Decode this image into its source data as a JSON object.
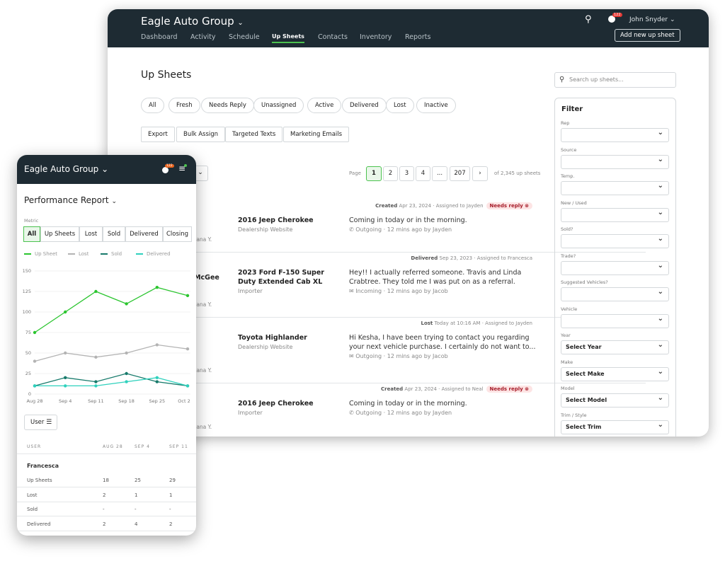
{
  "desktop": {
    "brand": "Eagle Auto Group",
    "nav": [
      "Dashboard",
      "Activity",
      "Schedule",
      "Up Sheets",
      "Contacts",
      "Inventory",
      "Reports"
    ],
    "active_nav": "Up Sheets",
    "notif_count": "122",
    "user": "John Snyder",
    "add_button": "Add new up sheet",
    "page_title": "Up Sheets",
    "search_placeholder": "Search up sheets...",
    "pills": [
      "All",
      "Fresh",
      "Needs Reply",
      "Unassigned",
      "Active",
      "Delivered",
      "Lost",
      "Inactive"
    ],
    "actions": [
      "Export",
      "Bulk Assign",
      "Targeted Texts",
      "Marketing Emails"
    ],
    "pagination": {
      "label": "Page",
      "pages": [
        "1",
        "2",
        "3",
        "4",
        "...",
        "207"
      ],
      "current": "1",
      "total": "of 2,345 up sheets"
    },
    "rows": [
      {
        "status": "Created",
        "date": "Apr 23, 2024",
        "assigned": "Assigned to Jayden",
        "badge": "Needs reply",
        "customer": "",
        "rep": "Tatyana Y.",
        "vehicle": "2016 Jeep Cherokee",
        "source": "Dealership Website",
        "message": "Coming in today or in the morning.",
        "channel": "Outgoing",
        "ago": "12 mins ago by Jayden",
        "channel_icon": "phone-icon"
      },
      {
        "status": "Delivered",
        "date": "Sep 23, 2023",
        "assigned": "Assigned to Francesca",
        "badge": "",
        "customer": "n McGee",
        "rep": "Tatyana Y.",
        "vehicle": "2023 Ford F-150 Super Duty Extended Cab XL",
        "source": "Importer",
        "message": "Hey!! I actually referred someone. Travis and Linda Crabtree. They told me I was put on as a referral.",
        "channel": "Incoming",
        "ago": "12 mins ago by Jacob",
        "channel_icon": "mail-icon"
      },
      {
        "status": "Lost",
        "date": "Today at 10:16 AM",
        "assigned": "Assigned to Jayden",
        "badge": "",
        "customer": "",
        "rep": "Tatyana Y.",
        "vehicle": "Toyota Highlander",
        "source": "Dealership Website",
        "message": "Hi Kesha, I have been trying to contact you regarding your next vehicle purchase. I certainly do not want to...",
        "channel": "Outgoing",
        "ago": "12 mins ago by Jacob",
        "channel_icon": "mail-icon"
      },
      {
        "status": "Created",
        "date": "Apr 23, 2024",
        "assigned": "Assigned to Neal",
        "badge": "Needs reply",
        "customer": "",
        "rep": "Tatyana Y.",
        "vehicle": "2016 Jeep Cherokee",
        "source": "Importer",
        "message": "Coming in today or in the morning.",
        "channel": "Outgoing",
        "ago": "12 mins ago by Jayden",
        "channel_icon": "phone-icon"
      }
    ],
    "filter": {
      "title": "Filter",
      "fields": [
        {
          "label": "Rep",
          "value": ""
        },
        {
          "label": "Source",
          "value": ""
        },
        {
          "label": "Temp.",
          "value": ""
        },
        {
          "label": "New / Used",
          "value": ""
        },
        {
          "label": "Sold?",
          "value": ""
        },
        {
          "label": "Trade?",
          "value": ""
        },
        {
          "label": "Suggested Vehicles?",
          "value": ""
        },
        {
          "label": "Vehicle",
          "value": ""
        },
        {
          "label": "Year",
          "value": "Select Year"
        },
        {
          "label": "Make",
          "value": "Select Make"
        },
        {
          "label": "Model",
          "value": "Select Model"
        },
        {
          "label": "Trim / Style",
          "value": "Select Trim"
        }
      ]
    }
  },
  "mobile": {
    "brand": "Eagle Auto Group",
    "notif_count": "122",
    "title": "Performance Report",
    "metric_label": "Metric",
    "metrics": [
      "All",
      "Up Sheets",
      "Lost",
      "Sold",
      "Delivered",
      "Closing"
    ],
    "active_metric": "All",
    "user_button": "User",
    "table": {
      "headers": [
        "USER",
        "AUG 28",
        "SEP 4",
        "SEP 11"
      ],
      "group": "Francesca",
      "rows": [
        [
          "Up Sheets",
          "18",
          "25",
          "29"
        ],
        [
          "Lost",
          "2",
          "1",
          "1"
        ],
        [
          "Sold",
          "-",
          "-",
          "-"
        ],
        [
          "Delivered",
          "2",
          "4",
          "2"
        ]
      ]
    }
  },
  "chart_data": {
    "type": "line",
    "categories": [
      "Aug 28",
      "Sep 4",
      "Sep 11",
      "Sep 18",
      "Sep 25",
      "Oct 2"
    ],
    "ylim": [
      0,
      150
    ],
    "yticks": [
      "0",
      "25",
      "50",
      "75",
      "100",
      "125",
      "150"
    ],
    "grid": true,
    "legend": "top",
    "series": [
      {
        "name": "Up Sheet",
        "color": "#2bc52f",
        "values": [
          75,
          100,
          125,
          110,
          130,
          120
        ]
      },
      {
        "name": "Lost",
        "color": "#b3b3b3",
        "values": [
          40,
          50,
          45,
          50,
          60,
          55
        ]
      },
      {
        "name": "Sold",
        "color": "#177a6b",
        "values": [
          10,
          20,
          15,
          25,
          15,
          10
        ]
      },
      {
        "name": "Delivered",
        "color": "#2fd1bd",
        "values": [
          10,
          10,
          10,
          15,
          20,
          10
        ]
      }
    ]
  }
}
